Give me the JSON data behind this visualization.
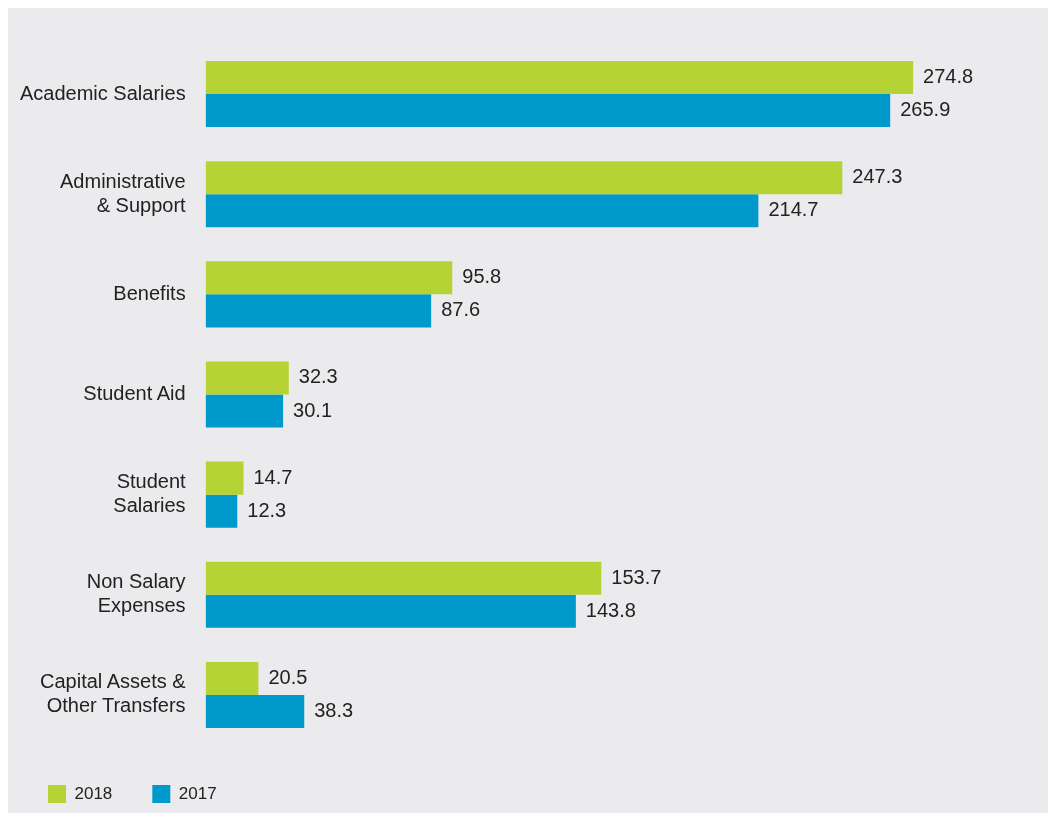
{
  "chart_data": {
    "type": "bar",
    "orientation": "horizontal",
    "categories": [
      "Academic Salaries",
      "Administrative\n& Support",
      "Benefits",
      "Student Aid",
      "Student\nSalaries",
      "Non Salary\nExpenses",
      "Capital Assets &\nOther Transfers"
    ],
    "series": [
      {
        "name": "2018",
        "color": "#b5d334",
        "values": [
          274.8,
          247.3,
          95.8,
          32.3,
          14.7,
          153.7,
          20.5
        ]
      },
      {
        "name": "2017",
        "color": "#0099cc",
        "values": [
          265.9,
          214.7,
          87.6,
          30.1,
          12.3,
          143.8,
          38.3
        ]
      }
    ],
    "data_labels": true,
    "legend": "bottom left"
  }
}
